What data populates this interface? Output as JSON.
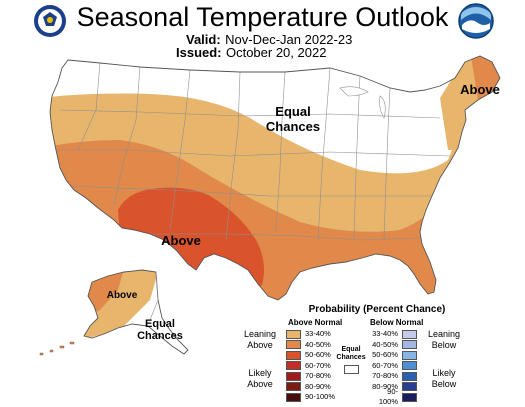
{
  "title": "Seasonal Temperature Outlook",
  "valid": {
    "label": "Valid:",
    "value": "Nov-Dec-Jan 2022-23"
  },
  "issued": {
    "label": "Issued:",
    "value": "October 20, 2022"
  },
  "map_labels": {
    "equal_chances_top": [
      "Equal",
      "Chances"
    ],
    "above_northeast": "Above",
    "above_southwest": "Above",
    "above_alaska": "Above",
    "equal_chances_alaska": [
      "Equal",
      "Chances"
    ]
  },
  "legend": {
    "title": "Probability (Percent Chance)",
    "above_header": "Above Normal",
    "below_header": "Below Normal",
    "equal_chances": [
      "Equal",
      "Chances"
    ],
    "leaning_above": [
      "Leaning",
      "Above"
    ],
    "likely_above": [
      "Likely",
      "Above"
    ],
    "leaning_below": [
      "Leaning",
      "Below"
    ],
    "likely_below": [
      "Likely",
      "Below"
    ],
    "above_ranges": [
      {
        "label": "33-40%",
        "color": "#e8b56c"
      },
      {
        "label": "40-50%",
        "color": "#e0894a"
      },
      {
        "label": "50-60%",
        "color": "#d9532c"
      },
      {
        "label": "60-70%",
        "color": "#c32f27"
      },
      {
        "label": "70-80%",
        "color": "#a11d1d"
      },
      {
        "label": "80-90%",
        "color": "#7a1b14"
      },
      {
        "label": "90-100%",
        "color": "#4a0f0c"
      }
    ],
    "below_ranges": [
      {
        "label": "33-40%",
        "color": "#c4cbe8"
      },
      {
        "label": "40-50%",
        "color": "#a3b7e0"
      },
      {
        "label": "50-60%",
        "color": "#86b5e3"
      },
      {
        "label": "60-70%",
        "color": "#4d8fd1"
      },
      {
        "label": "70-80%",
        "color": "#2b5fb0"
      },
      {
        "label": "80-90%",
        "color": "#273f8e"
      },
      {
        "label": "90-100%",
        "color": "#1c1d5c"
      }
    ],
    "equal_color": "#ffffff"
  },
  "icons": [
    "commerce-seal-icon",
    "noaa-logo-icon"
  ]
}
